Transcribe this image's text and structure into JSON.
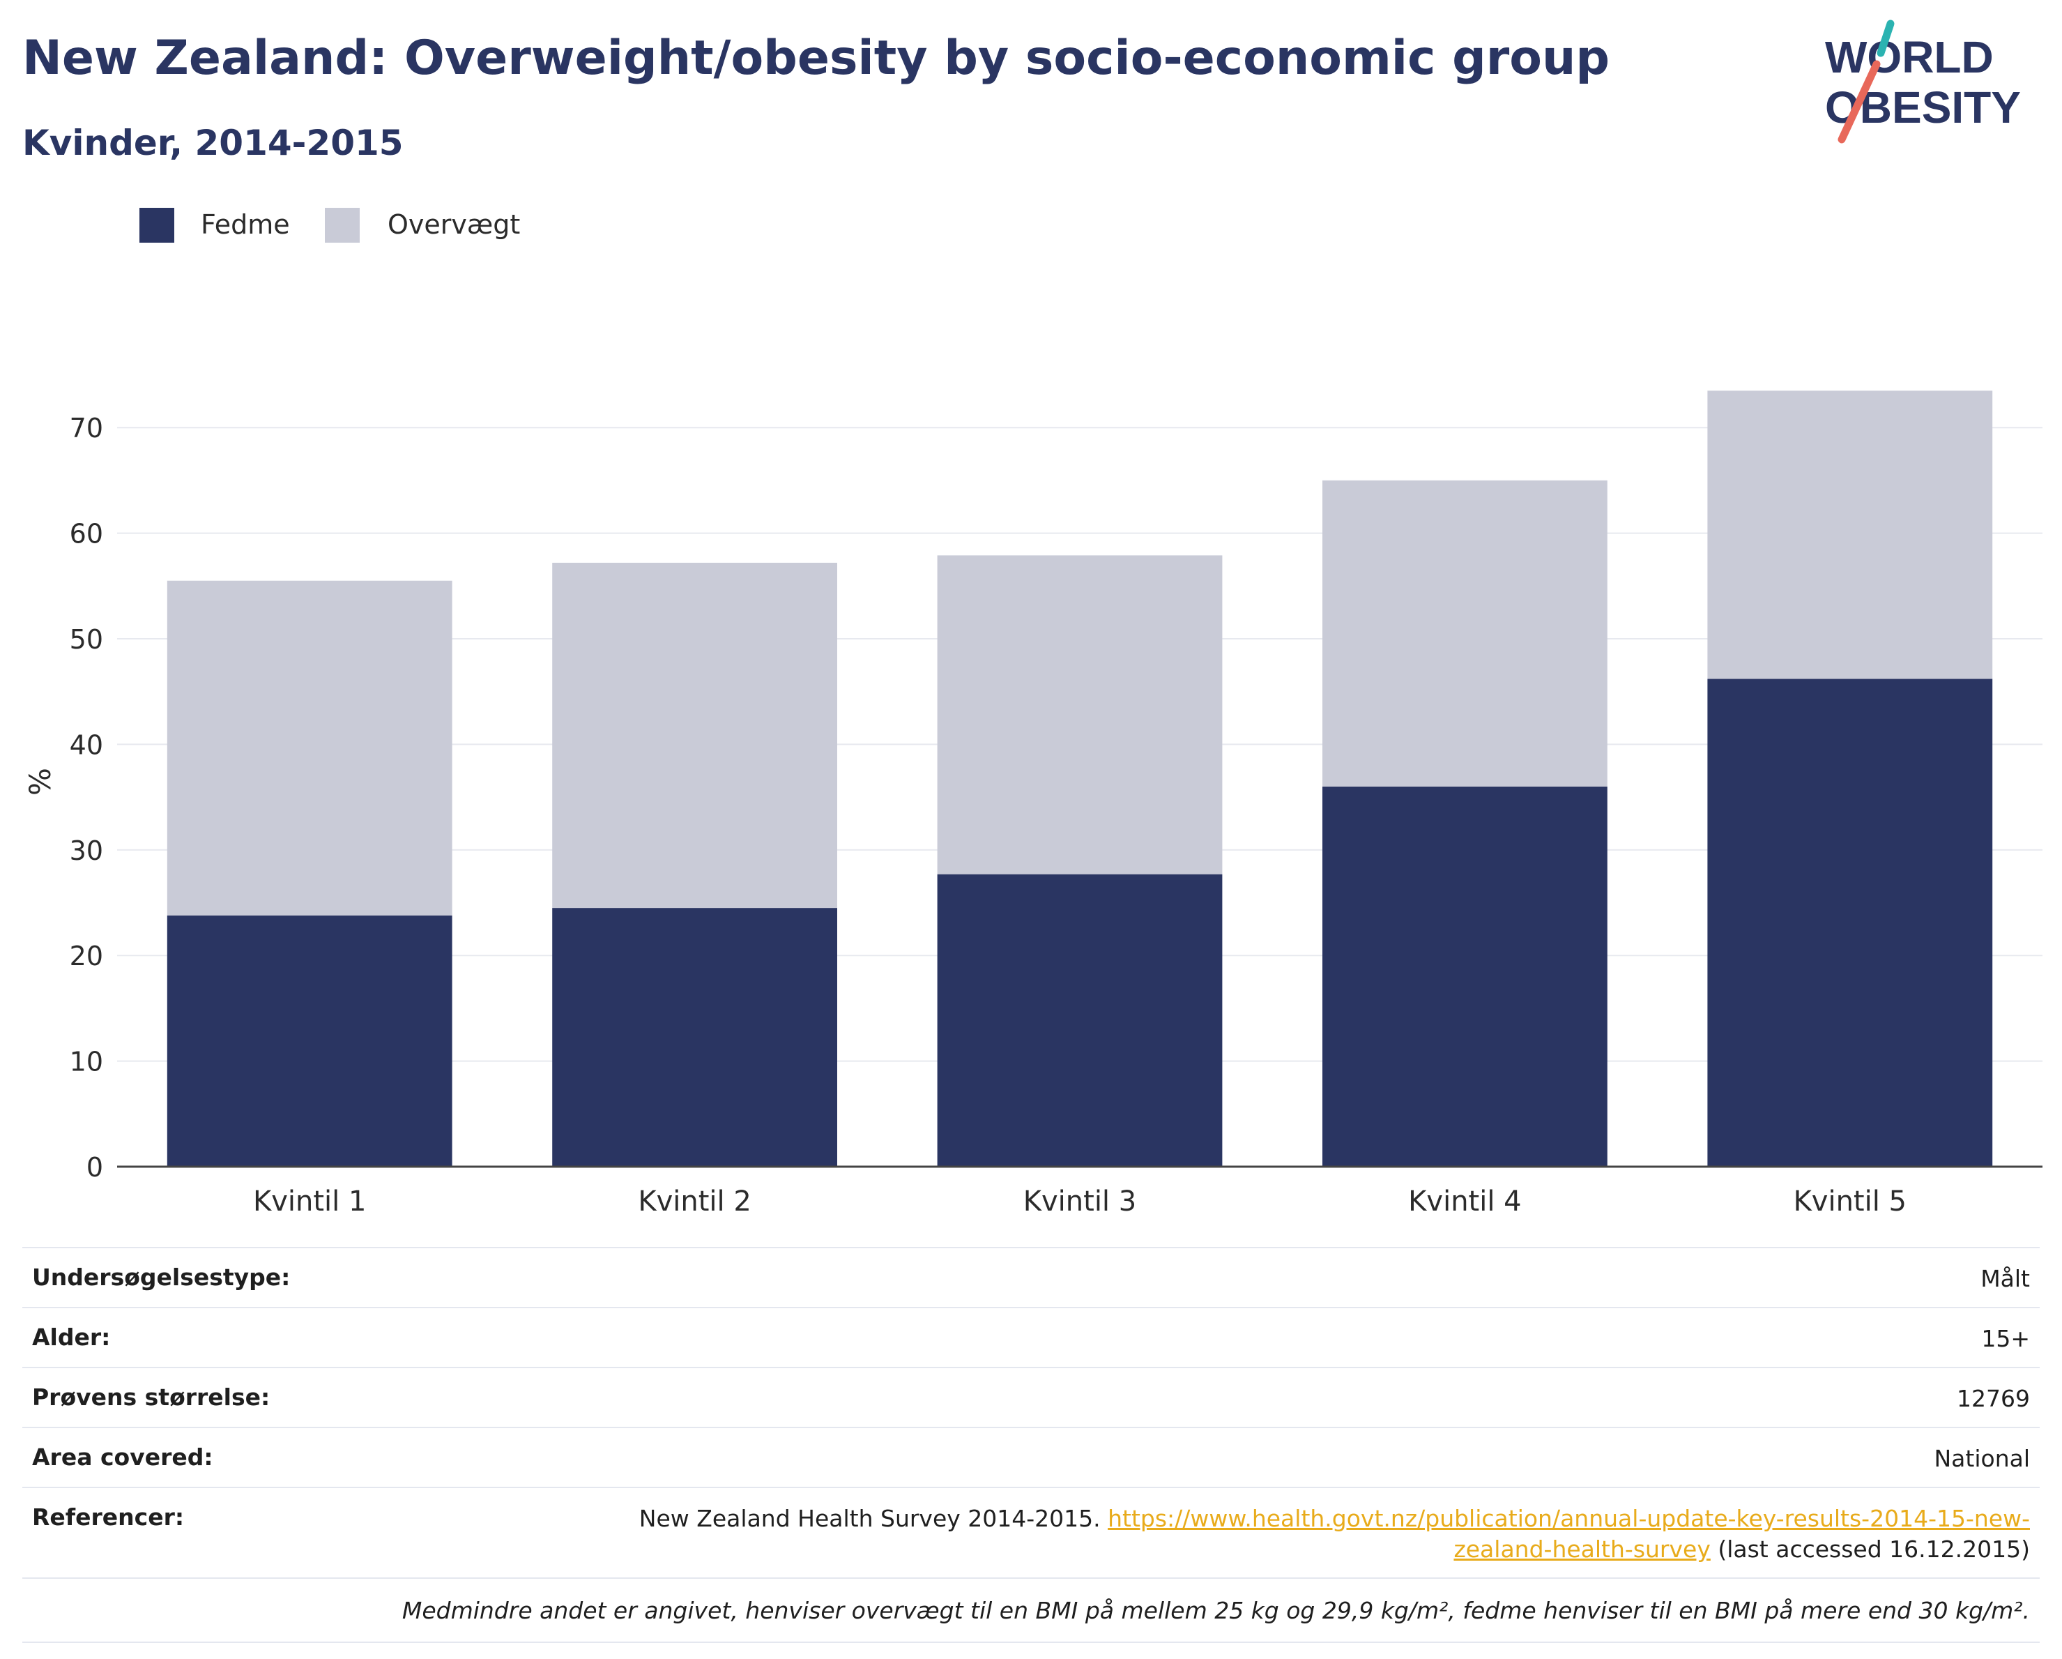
{
  "header": {
    "title": "New Zealand: Overweight/obesity by socio-economic group",
    "subtitle": "Kvinder, 2014-2015"
  },
  "logo": {
    "line1": "WORLD",
    "line2": "OBESITY",
    "colors": {
      "text": "#2a3562",
      "accent_teal": "#2bb3b1",
      "accent_coral": "#e8685a"
    }
  },
  "chart_data": {
    "type": "bar",
    "stacked": true,
    "categories": [
      "Kvintil 1",
      "Kvintil 2",
      "Kvintil 3",
      "Kvintil 4",
      "Kvintil 5"
    ],
    "series": [
      {
        "name": "Fedme",
        "color": "#2a3562",
        "values": [
          23.8,
          24.5,
          27.7,
          36.0,
          46.2
        ]
      },
      {
        "name": "Overvægt",
        "color": "#c9cbd7",
        "values": [
          31.7,
          32.7,
          30.2,
          29.0,
          27.3
        ]
      }
    ],
    "ylabel": "%",
    "ylim": [
      0,
      75
    ],
    "yticks": [
      0,
      10,
      20,
      30,
      40,
      50,
      60,
      70
    ],
    "grid": true,
    "legend_position": "top-left"
  },
  "info": {
    "survey_type_label": "Undersøgelsestype:",
    "survey_type_value": "Målt",
    "age_label": "Alder:",
    "age_value": "15+",
    "sample_label": "Prøvens størrelse:",
    "sample_value": "12769",
    "area_label": "Area covered:",
    "area_value": "National",
    "ref_label": "Referencer:",
    "ref_text": "New Zealand Health Survey 2014-2015. ",
    "ref_link": "https://www.health.govt.nz/publication/annual-update-key-results-2014-15-new-zealand-health-survey",
    "ref_suffix": " (last accessed 16.12.2015)",
    "note": "Medmindre andet er angivet, henviser overvægt til en BMI på mellem 25 kg og 29,9 kg/m², fedme henviser til en BMI på mere end 30 kg/m²."
  }
}
